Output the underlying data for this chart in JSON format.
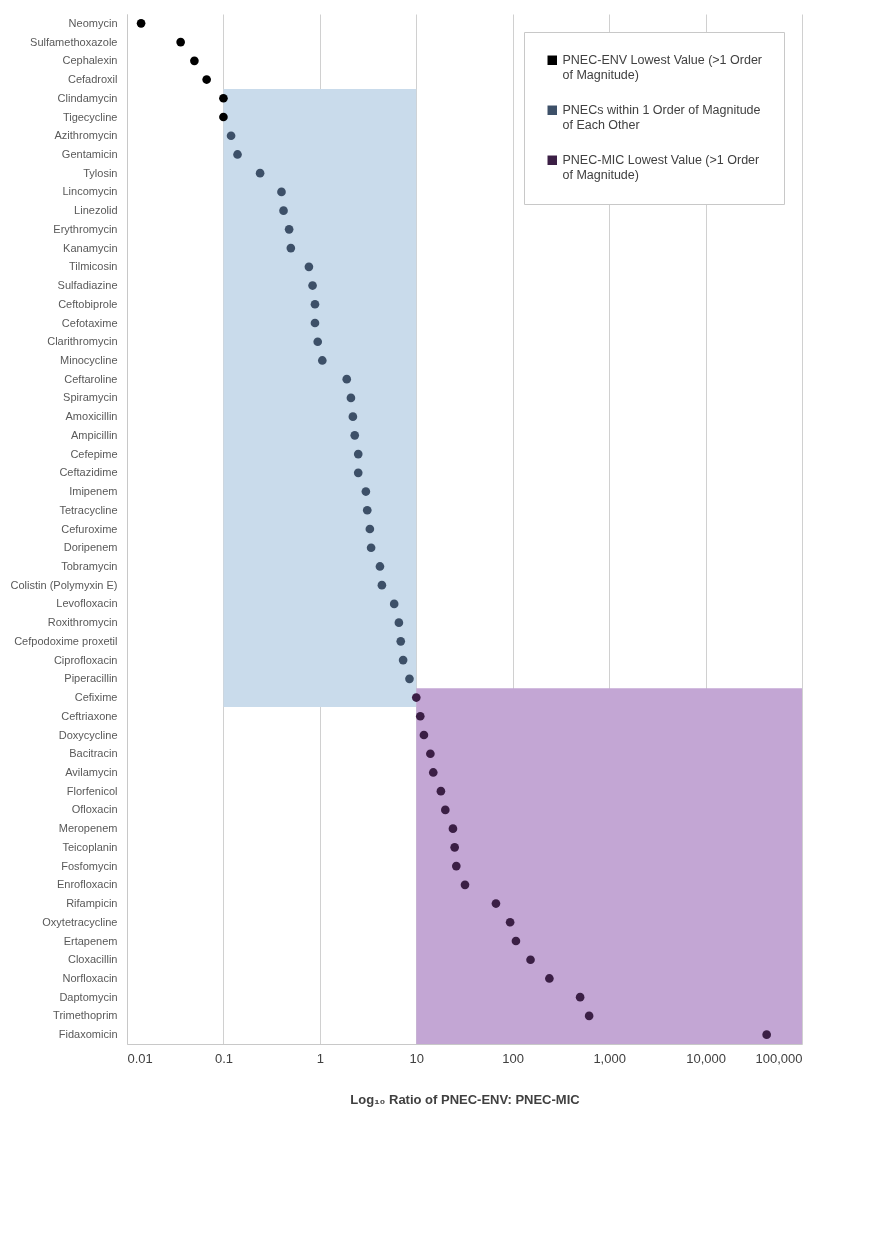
{
  "chart_data": {
    "type": "scatter",
    "xlabel": "Log₁₀ Ratio of PNEC-ENV: PNEC-MIC",
    "orientation": "horizontal",
    "log": "x",
    "grid": "x",
    "legend": "top right",
    "marker": "circle",
    "categories": [
      "Neomycin",
      "Sulfamethoxazole",
      "Cephalexin",
      "Cefadroxil",
      "Clindamycin",
      "Tigecycline",
      "Azithromycin",
      "Gentamicin",
      "Tylosin",
      "Lincomycin",
      "Linezolid",
      "Erythromycin",
      "Kanamycin",
      "Tilmicosin",
      "Sulfadiazine",
      "Ceftobiprole",
      "Cefotaxime",
      "Clarithromycin",
      "Minocycline",
      "Ceftaroline",
      "Spiramycin",
      "Amoxicillin",
      "Ampicillin",
      "Cefepime",
      "Ceftazidime",
      "Imipenem",
      "Tetracycline",
      "Cefuroxime",
      "Doripenem",
      "Tobramycin",
      "Colistin (Polymyxin E)",
      "Levofloxacin",
      "Roxithromycin",
      "Cefpodoxime proxetil",
      "Ciprofloxacin",
      "Piperacillin",
      "Cefixime",
      "Ceftriaxone",
      "Doxycycline",
      "Bacitracin",
      "Avilamycin",
      "Florfenicol",
      "Ofloxacin",
      "Meropenem",
      "Teicoplanin",
      "Fosfomycin",
      "Enrofloxacin",
      "Rifampicin",
      "Oxytetracycline",
      "Ertapenem",
      "Cloxacillin",
      "Norfloxacin",
      "Daptomycin",
      "Trimethoprim",
      "Fidaxomicin"
    ],
    "series": [
      {
        "name": "PNEC-ENV Lowest Value (>1 Order of Magnitude)",
        "color": "#000000",
        "values": [
          0.014,
          0.036,
          0.05,
          0.067,
          0.1,
          0.1,
          null,
          null,
          null,
          null,
          null,
          null,
          null,
          null,
          null,
          null,
          null,
          null,
          null,
          null,
          null,
          null,
          null,
          null,
          null,
          null,
          null,
          null,
          null,
          null,
          null,
          null,
          null,
          null,
          null,
          null,
          null,
          null,
          null,
          null,
          null,
          null,
          null,
          null,
          null,
          null,
          null,
          null,
          null,
          null,
          null,
          null,
          null,
          null,
          null
        ]
      },
      {
        "name": "PNECs within 1 Order of Magnitude of Each Other",
        "color": "#3d5068",
        "values": [
          null,
          null,
          null,
          null,
          null,
          null,
          0.12,
          0.14,
          0.24,
          0.4,
          0.42,
          0.48,
          0.5,
          0.77,
          0.84,
          0.89,
          0.89,
          0.95,
          1.06,
          1.9,
          2.1,
          2.2,
          2.3,
          2.5,
          2.5,
          3.0,
          3.1,
          3.3,
          3.4,
          4.2,
          4.4,
          5.9,
          6.6,
          6.9,
          7.3,
          8.5,
          null,
          null,
          null,
          null,
          null,
          null,
          null,
          null,
          null,
          null,
          null,
          null,
          null,
          null,
          null,
          null,
          null,
          null,
          null
        ]
      },
      {
        "name": "PNEC-MIC Lowest Value (>1 Order of Magnitude)",
        "color": "#3b1f45",
        "values": [
          null,
          null,
          null,
          null,
          null,
          null,
          null,
          null,
          null,
          null,
          null,
          null,
          null,
          null,
          null,
          null,
          null,
          null,
          null,
          null,
          null,
          null,
          null,
          null,
          null,
          null,
          null,
          null,
          null,
          null,
          null,
          null,
          null,
          null,
          null,
          null,
          10,
          11,
          12,
          14,
          15,
          18,
          20,
          24,
          25,
          26,
          32,
          67,
          94,
          108,
          153,
          240,
          500,
          620,
          43000
        ]
      }
    ],
    "xlim": [
      0.01,
      100000
    ],
    "xticks": [
      0.01,
      0.1,
      1,
      10,
      100,
      {
        "value": 1000,
        "label": "1,000"
      },
      {
        "value": 10000,
        "label": "10,000"
      },
      {
        "value": 100000,
        "label": "100,000"
      }
    ],
    "bands": [
      {
        "axis": "x",
        "from": 0.1,
        "to": 10,
        "color": "#c9dbeb"
      },
      {
        "axis": "x",
        "from": 10,
        "to": 100000,
        "color": "#c3a6d4"
      }
    ]
  }
}
